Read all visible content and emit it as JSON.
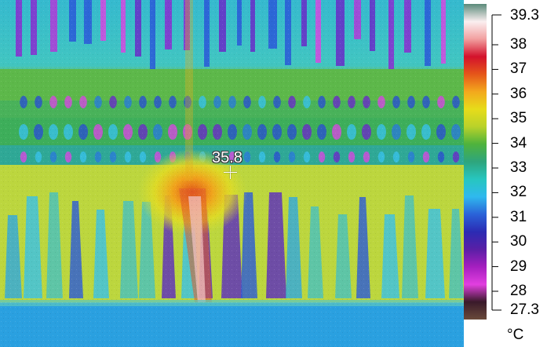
{
  "thermal_image": {
    "spot_temperature": "35.8"
  },
  "scale": {
    "max_label": "39.3",
    "min_label": "27.3",
    "tick_labels": [
      "38",
      "37",
      "36",
      "35",
      "34",
      "33",
      "32",
      "31",
      "30",
      "29",
      "28"
    ],
    "unit": "°C",
    "palette": [
      "#5b8a7a",
      "#fbeff0",
      "#f2a0a0",
      "#d3122c",
      "#e5551a",
      "#f3a81d",
      "#e7dc1a",
      "#b9d22a",
      "#4fb33c",
      "#2ea57d",
      "#27c6c0",
      "#2fb9ee",
      "#2a62d8",
      "#2b2bb3",
      "#5a1fa6",
      "#a51fbf",
      "#e23fe0",
      "#3a1a2a",
      "#6a4a3a"
    ]
  }
}
